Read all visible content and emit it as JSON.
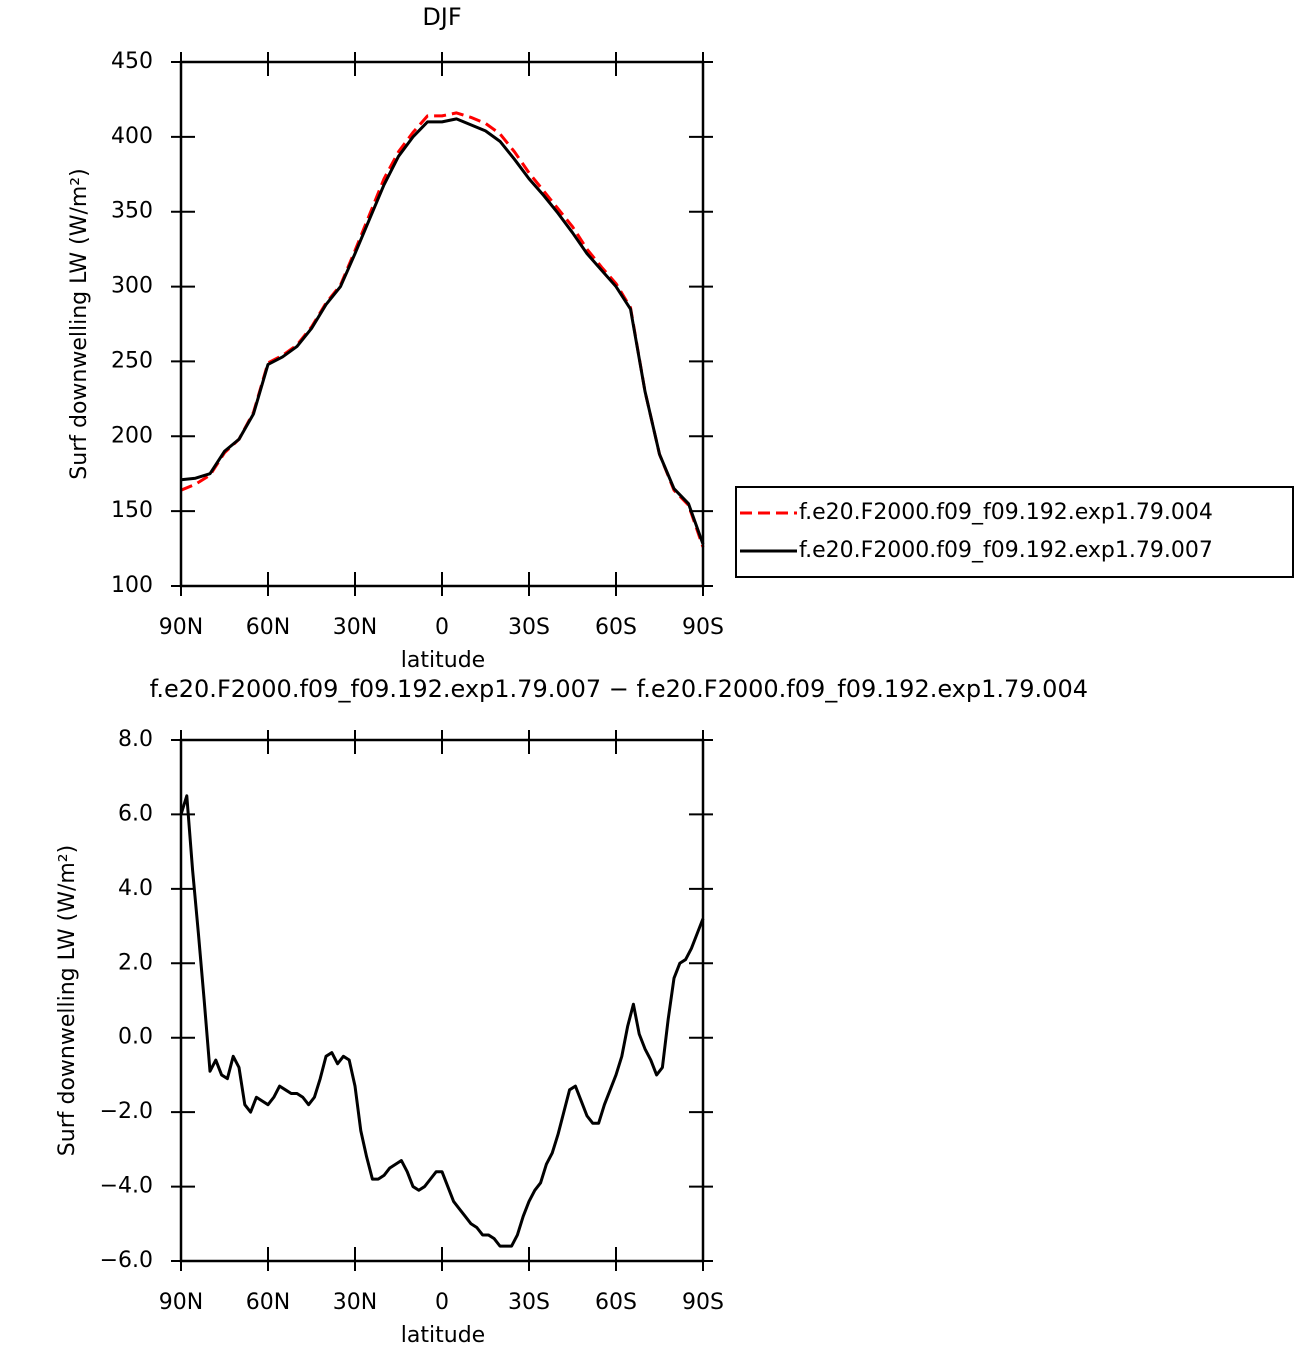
{
  "chart_data": [
    {
      "type": "line",
      "title": "DJF",
      "xlabel": "latitude",
      "ylabel": "Surf downwelling LW (W/m²)",
      "x": [
        90,
        85,
        80,
        75,
        70,
        65,
        60,
        55,
        50,
        45,
        40,
        35,
        30,
        25,
        20,
        15,
        10,
        5,
        0,
        -5,
        -10,
        -15,
        -20,
        -25,
        -30,
        -35,
        -40,
        -45,
        -50,
        -55,
        -60,
        -65,
        -70,
        -75,
        -80,
        -85,
        -90
      ],
      "series": [
        {
          "name": "f.e20.F2000.f09_f09.192.exp1.79.004",
          "color": "#ff0000",
          "linestyle": "dashed",
          "values": [
            164,
            168,
            174,
            189,
            198,
            216,
            249,
            254,
            261,
            273,
            289,
            301,
            324,
            348,
            372,
            390,
            403,
            414,
            414,
            416,
            413,
            409,
            402,
            390,
            376,
            364,
            352,
            340,
            325,
            313,
            302,
            286,
            230,
            188,
            164,
            154,
            126
          ]
        },
        {
          "name": "f.e20.F2000.f09_f09.192.exp1.79.007",
          "color": "#000000",
          "linestyle": "solid",
          "values": [
            171,
            172,
            175,
            190,
            198,
            215,
            248,
            253,
            260,
            272,
            288,
            300,
            322,
            345,
            368,
            387,
            400,
            410,
            410,
            412,
            408,
            404,
            397,
            385,
            372,
            361,
            349,
            336,
            322,
            311,
            300,
            285,
            230,
            188,
            165,
            155,
            128
          ]
        }
      ],
      "xlim": [
        90,
        -90
      ],
      "xticks": [
        {
          "value": 90,
          "label": "90N"
        },
        {
          "value": 60,
          "label": "60N"
        },
        {
          "value": 30,
          "label": "30N"
        },
        0,
        {
          "value": -30,
          "label": "30S"
        },
        {
          "value": -60,
          "label": "60S"
        },
        {
          "value": -90,
          "label": "90S"
        }
      ],
      "ylim": [
        100,
        450
      ],
      "yticks": [
        100,
        150,
        200,
        250,
        300,
        350,
        400,
        450
      ],
      "legend": "right"
    },
    {
      "type": "line",
      "title": "f.e20.F2000.f09_f09.192.exp1.79.007 − f.e20.F2000.f09_f09.192.exp1.79.004",
      "xlabel": "latitude",
      "ylabel": "Surf downwelling LW (W/m²)",
      "x": [
        90,
        88,
        86,
        84,
        82,
        80,
        78,
        76,
        74,
        72,
        70,
        68,
        66,
        64,
        62,
        60,
        58,
        56,
        54,
        52,
        50,
        48,
        46,
        44,
        42,
        40,
        38,
        36,
        34,
        32,
        30,
        28,
        26,
        24,
        22,
        20,
        18,
        16,
        14,
        12,
        10,
        8,
        6,
        4,
        2,
        0,
        -2,
        -4,
        -6,
        -8,
        -10,
        -12,
        -14,
        -16,
        -18,
        -20,
        -22,
        -24,
        -26,
        -28,
        -30,
        -32,
        -34,
        -36,
        -38,
        -40,
        -42,
        -44,
        -46,
        -48,
        -50,
        -52,
        -54,
        -56,
        -58,
        -60,
        -62,
        -64,
        -66,
        -68,
        -70,
        -72,
        -74,
        -76,
        -78,
        -80,
        -82,
        -84,
        -86,
        -88,
        -90
      ],
      "color": "#000000",
      "values": [
        6.0,
        6.5,
        4.5,
        2.8,
        1.0,
        -0.9,
        -0.6,
        -1.0,
        -1.1,
        -0.5,
        -0.8,
        -1.8,
        -2.0,
        -1.6,
        -1.7,
        -1.8,
        -1.6,
        -1.3,
        -1.4,
        -1.5,
        -1.5,
        -1.6,
        -1.8,
        -1.6,
        -1.1,
        -0.5,
        -0.4,
        -0.7,
        -0.5,
        -0.6,
        -1.3,
        -2.5,
        -3.2,
        -3.8,
        -3.8,
        -3.7,
        -3.5,
        -3.4,
        -3.3,
        -3.6,
        -4.0,
        -4.1,
        -4.0,
        -3.8,
        -3.6,
        -3.6,
        -4.0,
        -4.4,
        -4.6,
        -4.8,
        -5.0,
        -5.1,
        -5.3,
        -5.3,
        -5.4,
        -5.6,
        -5.6,
        -5.6,
        -5.3,
        -4.8,
        -4.4,
        -4.1,
        -3.9,
        -3.4,
        -3.1,
        -2.6,
        -2.0,
        -1.4,
        -1.3,
        -1.7,
        -2.1,
        -2.3,
        -2.3,
        -1.8,
        -1.4,
        -1.0,
        -0.5,
        0.3,
        0.9,
        0.1,
        -0.3,
        -0.6,
        -1.0,
        -0.8,
        0.5,
        1.6,
        2.0,
        2.1,
        2.4,
        2.8,
        3.2
      ],
      "xlim": [
        90,
        -90
      ],
      "xticks": [
        {
          "value": 90,
          "label": "90N"
        },
        {
          "value": 60,
          "label": "60N"
        },
        {
          "value": 30,
          "label": "30N"
        },
        0,
        {
          "value": -30,
          "label": "30S"
        },
        {
          "value": -60,
          "label": "60S"
        },
        {
          "value": -90,
          "label": "90S"
        }
      ],
      "ylim": [
        -6,
        8
      ],
      "yticks": [
        {
          "value": -6,
          "label": "−6.0"
        },
        {
          "value": -4,
          "label": "−4.0"
        },
        {
          "value": -2,
          "label": "−2.0"
        },
        {
          "value": 0,
          "label": "0.0"
        },
        {
          "value": 2,
          "label": "2.0"
        },
        {
          "value": 4,
          "label": "4.0"
        },
        {
          "value": 6,
          "label": "6.0"
        },
        {
          "value": 8,
          "label": "8.0"
        }
      ]
    }
  ]
}
